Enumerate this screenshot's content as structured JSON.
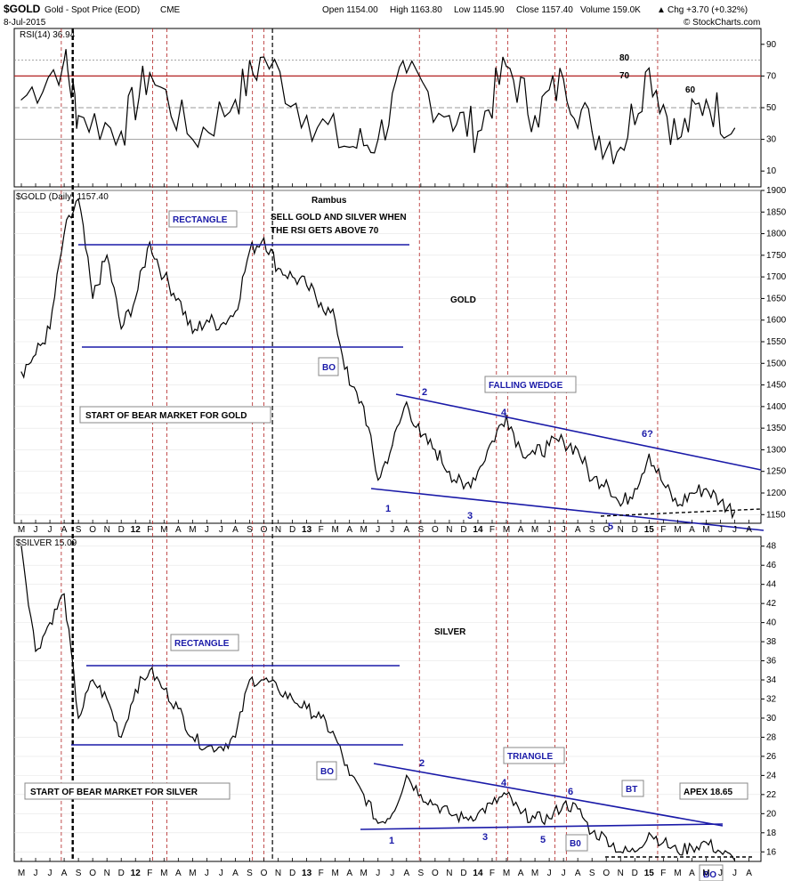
{
  "header": {
    "symbol": "$GOLD",
    "desc": "Gold - Spot Price (EOD)",
    "exchange": "CME",
    "date": "8-Jul-2015",
    "open": "Open 1154.00",
    "high": "High 1163.80",
    "low": "Low 1145.90",
    "close": "Close 1157.40",
    "volume": "Volume 159.0K",
    "change": "Chg +3.70 (+0.32%)",
    "change_arrow": "▲",
    "credit": "© StockCharts.com"
  },
  "colors": {
    "price_line": "#000000",
    "trendline": "#1a1aa8",
    "marker_line": "#b22222",
    "rsi_overbought_fill": "#2e7d32",
    "grid": "#999999"
  },
  "chart_data": [
    {
      "type": "line",
      "name": "rsi-panel",
      "title": "RSI(14) 36.94",
      "ylim": [
        0,
        100
      ],
      "yticks": [
        10,
        30,
        50,
        70,
        90
      ],
      "reference_lines": [
        30,
        50,
        70,
        80
      ],
      "annotations": [
        "80",
        "70",
        "60"
      ],
      "x": [
        "2011-05",
        "2011-08",
        "2011-09",
        "2011-12",
        "2012-02",
        "2012-05",
        "2012-08",
        "2012-10",
        "2013-01",
        "2013-04",
        "2013-06",
        "2013-08",
        "2013-11",
        "2014-01",
        "2014-03",
        "2014-05",
        "2014-07",
        "2014-09",
        "2014-11",
        "2015-01",
        "2015-03",
        "2015-05",
        "2015-07"
      ],
      "values": [
        55,
        80,
        45,
        35,
        72,
        30,
        55,
        82,
        45,
        25,
        30,
        72,
        45,
        35,
        76,
        45,
        68,
        35,
        25,
        75,
        30,
        55,
        37
      ]
    },
    {
      "type": "line",
      "name": "gold-panel",
      "title": "$GOLD (Daily) 1157.40",
      "ylim": [
        1130,
        1900
      ],
      "yticks": [
        1150,
        1200,
        1250,
        1300,
        1350,
        1400,
        1450,
        1500,
        1550,
        1600,
        1650,
        1700,
        1750,
        1800,
        1850,
        1900
      ],
      "x": [
        "2011-05",
        "2011-06",
        "2011-07",
        "2011-08",
        "2011-09",
        "2011-10",
        "2011-11",
        "2011-12",
        "2012-01",
        "2012-02",
        "2012-03",
        "2012-04",
        "2012-05",
        "2012-06",
        "2012-07",
        "2012-08",
        "2012-09",
        "2012-10",
        "2012-11",
        "2012-12",
        "2013-01",
        "2013-02",
        "2013-03",
        "2013-04",
        "2013-05",
        "2013-06",
        "2013-07",
        "2013-08",
        "2013-09",
        "2013-10",
        "2013-11",
        "2013-12",
        "2014-01",
        "2014-02",
        "2014-03",
        "2014-04",
        "2014-05",
        "2014-06",
        "2014-07",
        "2014-08",
        "2014-09",
        "2014-10",
        "2014-11",
        "2014-12",
        "2015-01",
        "2015-02",
        "2015-03",
        "2015-04",
        "2015-05",
        "2015-06",
        "2015-07"
      ],
      "values": [
        1480,
        1520,
        1580,
        1800,
        1880,
        1650,
        1750,
        1580,
        1650,
        1780,
        1700,
        1650,
        1570,
        1600,
        1590,
        1620,
        1760,
        1790,
        1720,
        1700,
        1680,
        1640,
        1600,
        1450,
        1400,
        1230,
        1310,
        1410,
        1330,
        1300,
        1250,
        1210,
        1250,
        1320,
        1380,
        1300,
        1290,
        1310,
        1320,
        1300,
        1230,
        1230,
        1170,
        1210,
        1290,
        1220,
        1170,
        1200,
        1210,
        1180,
        1157
      ]
    },
    {
      "type": "line",
      "name": "silver-panel",
      "title": "$SILVER 15.09",
      "ylim": [
        15,
        49
      ],
      "yticks": [
        16,
        18,
        20,
        22,
        24,
        26,
        28,
        30,
        32,
        34,
        36,
        38,
        40,
        42,
        44,
        46,
        48
      ],
      "x": [
        "2011-05",
        "2011-06",
        "2011-07",
        "2011-08",
        "2011-09",
        "2011-10",
        "2011-11",
        "2011-12",
        "2012-01",
        "2012-02",
        "2012-03",
        "2012-04",
        "2012-05",
        "2012-06",
        "2012-07",
        "2012-08",
        "2012-09",
        "2012-10",
        "2012-11",
        "2012-12",
        "2013-01",
        "2013-02",
        "2013-03",
        "2013-04",
        "2013-05",
        "2013-06",
        "2013-07",
        "2013-08",
        "2013-09",
        "2013-10",
        "2013-11",
        "2013-12",
        "2014-01",
        "2014-02",
        "2014-03",
        "2014-04",
        "2014-05",
        "2014-06",
        "2014-07",
        "2014-08",
        "2014-09",
        "2014-10",
        "2014-11",
        "2014-12",
        "2015-01",
        "2015-02",
        "2015-03",
        "2015-04",
        "2015-05",
        "2015-06",
        "2015-07"
      ],
      "values": [
        48,
        37,
        40,
        43,
        30,
        34,
        32,
        28,
        33,
        35,
        33,
        31,
        28,
        27,
        27,
        28,
        34,
        34,
        33,
        32,
        31,
        30,
        28,
        24,
        22,
        19,
        20,
        24,
        22,
        21,
        20,
        19.5,
        20,
        21,
        22,
        20,
        19.5,
        19.5,
        21,
        20.5,
        18,
        17.5,
        16,
        16,
        18,
        17,
        16,
        16.5,
        17,
        16,
        15.1
      ]
    }
  ],
  "x_axis": {
    "top": [
      {
        "label": "M",
        "bold": false
      },
      {
        "label": "J",
        "bold": false
      },
      {
        "label": "J",
        "bold": false
      },
      {
        "label": "A",
        "bold": false
      },
      {
        "label": "S",
        "bold": false
      },
      {
        "label": "O",
        "bold": false
      },
      {
        "label": "N",
        "bold": false
      },
      {
        "label": "D",
        "bold": false
      },
      {
        "label": "12",
        "bold": true
      },
      {
        "label": "F",
        "bold": false
      },
      {
        "label": "M",
        "bold": false
      },
      {
        "label": "A",
        "bold": false
      },
      {
        "label": "M",
        "bold": false
      },
      {
        "label": "J",
        "bold": false
      },
      {
        "label": "J",
        "bold": false
      },
      {
        "label": "A",
        "bold": false
      },
      {
        "label": "S",
        "bold": false
      },
      {
        "label": "O",
        "bold": false
      },
      {
        "label": "N",
        "bold": false
      },
      {
        "label": "D",
        "bold": false
      },
      {
        "label": "13",
        "bold": true
      },
      {
        "label": "F",
        "bold": false
      },
      {
        "label": "M",
        "bold": false
      },
      {
        "label": "A",
        "bold": false
      },
      {
        "label": "M",
        "bold": false
      },
      {
        "label": "J",
        "bold": false
      },
      {
        "label": "J",
        "bold": false
      },
      {
        "label": "A",
        "bold": false
      },
      {
        "label": "S",
        "bold": false
      },
      {
        "label": "O",
        "bold": false
      },
      {
        "label": "N",
        "bold": false
      },
      {
        "label": "D",
        "bold": false
      },
      {
        "label": "14",
        "bold": true
      },
      {
        "label": "F",
        "bold": false
      },
      {
        "label": "M",
        "bold": false
      },
      {
        "label": "A",
        "bold": false
      },
      {
        "label": "M",
        "bold": false
      },
      {
        "label": "J",
        "bold": false
      },
      {
        "label": "J",
        "bold": false
      },
      {
        "label": "A",
        "bold": false
      },
      {
        "label": "S",
        "bold": false
      },
      {
        "label": "O",
        "bold": false
      },
      {
        "label": "N",
        "bold": false
      },
      {
        "label": "D",
        "bold": false
      },
      {
        "label": "15",
        "bold": true
      },
      {
        "label": "F",
        "bold": false
      },
      {
        "label": "M",
        "bold": false
      },
      {
        "label": "A",
        "bold": false
      },
      {
        "label": "M",
        "bold": false
      },
      {
        "label": "J",
        "bold": false
      },
      {
        "label": "J",
        "bold": false
      },
      {
        "label": "A",
        "bold": false
      }
    ]
  },
  "annotations": {
    "rambus": "Rambus",
    "sell_note_1": "SELL GOLD AND SILVER WHEN",
    "sell_note_2": "THE RSI GETS ABOVE 70",
    "gold_label": "GOLD",
    "silver_label": "SILVER",
    "gold_rectangle": "RECTANGLE",
    "silver_rectangle": "RECTANGLE",
    "gold_bo": "BO",
    "silver_bo": "BO",
    "falling_wedge": "FALLING WEDGE",
    "triangle": "TRIANGLE",
    "bear_gold": "START OF BEAR MARKET FOR GOLD",
    "bear_silver": "START OF BEAR MARKET FOR SILVER",
    "gold_points": [
      "1",
      "2",
      "3",
      "4",
      "5",
      "6?"
    ],
    "silver_points": [
      "1",
      "2",
      "3",
      "4",
      "5",
      "6"
    ],
    "silver_b0": "B0",
    "bt": "BT",
    "apex": "APEX 18.65",
    "silver_bo2": "BO"
  }
}
